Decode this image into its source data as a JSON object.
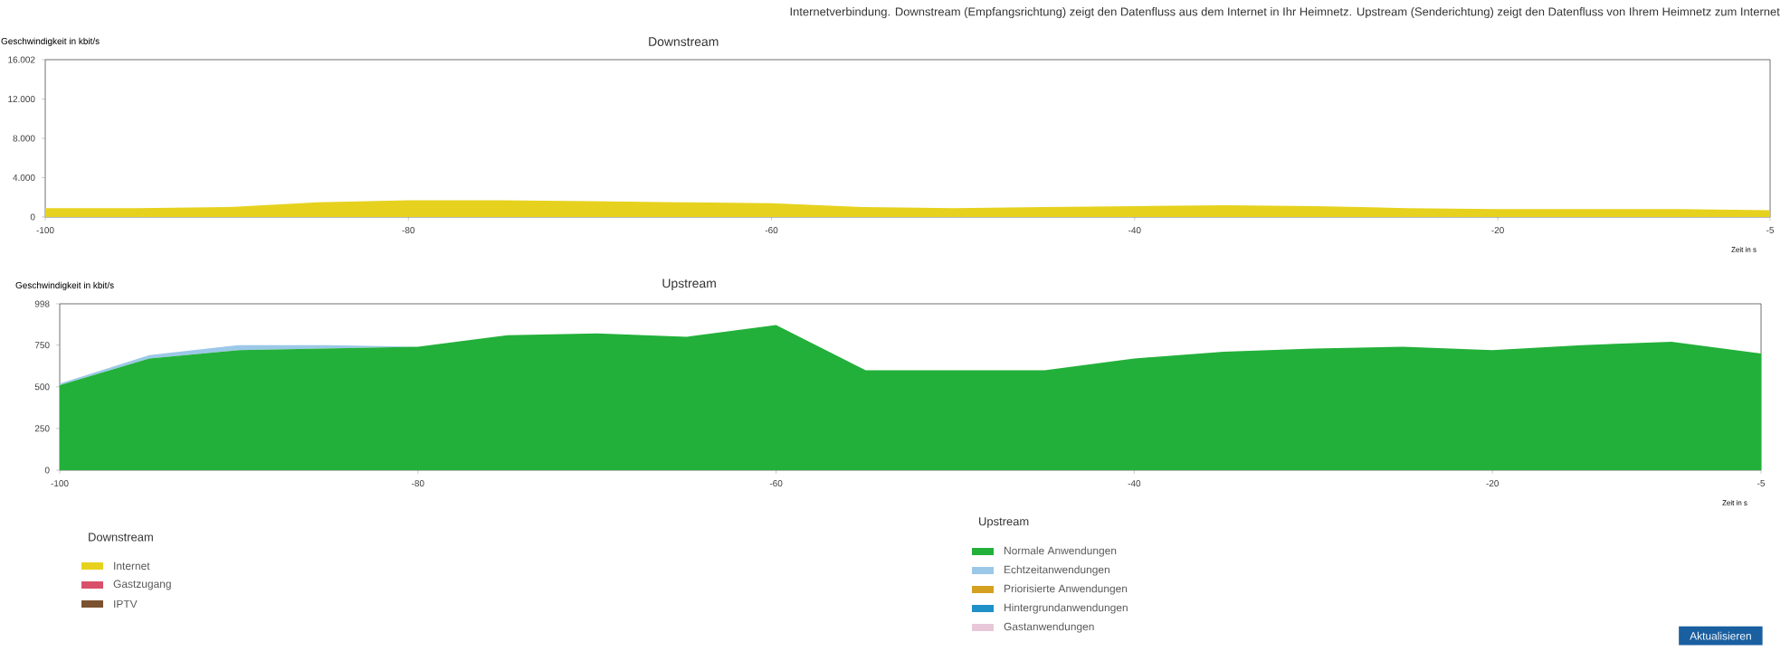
{
  "chart_data": [
    {
      "type": "area",
      "title": "Downstream",
      "ylabel": "Geschwindigkeit in kbit/s",
      "xlabel": "Zeit in s",
      "stacked": true,
      "legend": "bottom",
      "legend_title": "Downstream",
      "annotations": [
        "Internetverbindung. Downstream (Empfangsrichtung) zeigt den Datenfluss aus dem Internet in Ihr Heimnetz. Upstream (Senderichtung) zeigt den Datenfluss von Ihrem Heimnetz zum Internet"
      ],
      "x": [
        -100,
        -95,
        -90,
        -85,
        -80,
        -75,
        -70,
        -65,
        -60,
        -55,
        -50,
        -45,
        -40,
        -35,
        -30,
        -25,
        -20,
        -15,
        -10,
        -5
      ],
      "xlim": [
        -100,
        -5
      ],
      "xticks": [
        -100,
        -80,
        -60,
        -40,
        -20,
        -5
      ],
      "ylim": [
        0,
        16002
      ],
      "yticks": [
        0,
        {
          "value": 4000,
          "label": "4.000"
        },
        {
          "value": 8000,
          "label": "8.000"
        },
        {
          "value": 12000,
          "label": "12.000"
        },
        {
          "value": 16002,
          "label": "16.002"
        }
      ],
      "series": [
        {
          "name": "Internet",
          "color": "#e6d21e",
          "values": [
            900,
            900,
            1000,
            1500,
            1700,
            1700,
            1600,
            1500,
            1400,
            1000,
            900,
            1000,
            1100,
            1200,
            1100,
            900,
            800,
            800,
            800,
            700
          ]
        },
        {
          "name": "Gastzugang",
          "color": "#d9506a",
          "values": [
            null,
            null,
            null,
            null,
            null,
            null,
            null,
            null,
            null,
            null,
            null,
            null,
            null,
            null,
            null,
            null,
            null,
            null,
            null,
            null
          ]
        },
        {
          "name": "IPTV",
          "color": "#7a5230",
          "values": [
            null,
            null,
            null,
            null,
            null,
            null,
            null,
            null,
            null,
            null,
            null,
            null,
            null,
            null,
            null,
            null,
            null,
            null,
            null,
            null
          ]
        }
      ]
    },
    {
      "type": "area",
      "title": "Upstream",
      "ylabel": "Geschwindigkeit in kbit/s",
      "xlabel": "Zeit in s",
      "stacked": true,
      "legend": "bottom",
      "legend_title": "Upstream",
      "annotations": [
        "Aktualisieren"
      ],
      "x": [
        -100,
        -95,
        -90,
        -85,
        -80,
        -75,
        -70,
        -65,
        -60,
        -55,
        -50,
        -45,
        -40,
        -35,
        -30,
        -25,
        -20,
        -15,
        -10,
        -5
      ],
      "xlim": [
        -100,
        -5
      ],
      "xticks": [
        -100,
        -80,
        -60,
        -40,
        -20,
        -5
      ],
      "ylim": [
        0,
        998
      ],
      "yticks": [
        0,
        250,
        500,
        750,
        998
      ],
      "series": [
        {
          "name": "Normale Anwendungen",
          "color": "#22b03a",
          "values": [
            510,
            670,
            720,
            730,
            740,
            810,
            820,
            800,
            870,
            600,
            600,
            600,
            670,
            710,
            730,
            740,
            720,
            750,
            770,
            700
          ]
        },
        {
          "name": "Echtzeitanwendungen",
          "color": "#9cc8e8",
          "values": [
            10,
            20,
            30,
            20,
            0,
            0,
            0,
            0,
            0,
            0,
            0,
            0,
            0,
            0,
            0,
            0,
            0,
            0,
            0,
            0
          ]
        },
        {
          "name": "Priorisierte Anwendungen",
          "color": "#d4a020",
          "values": [
            null,
            null,
            null,
            null,
            null,
            null,
            null,
            null,
            null,
            null,
            null,
            null,
            null,
            null,
            null,
            null,
            null,
            null,
            null,
            null
          ]
        },
        {
          "name": "Hintergrundanwendungen",
          "color": "#2090c8",
          "values": [
            null,
            null,
            null,
            null,
            null,
            null,
            null,
            null,
            null,
            null,
            null,
            null,
            null,
            null,
            null,
            null,
            null,
            null,
            null,
            null
          ]
        },
        {
          "name": "Gastanwendungen",
          "color": "#e8c8d8",
          "values": [
            null,
            null,
            null,
            null,
            null,
            null,
            null,
            null,
            null,
            null,
            null,
            null,
            null,
            null,
            null,
            null,
            null,
            null,
            null,
            null
          ]
        }
      ]
    }
  ]
}
